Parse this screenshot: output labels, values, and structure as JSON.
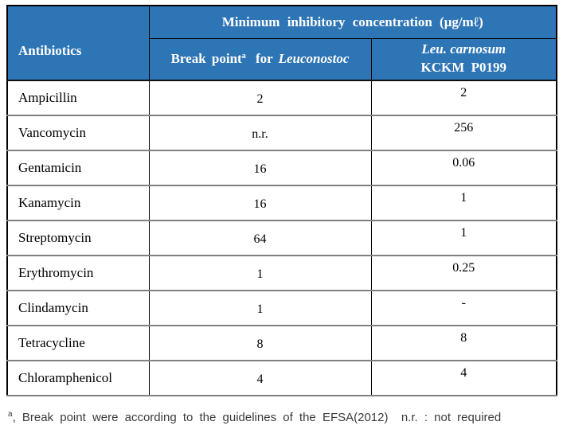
{
  "colors": {
    "header_bg": "#2e75b5",
    "header_text": "#ffffff",
    "body_text": "#000000",
    "row_divider": "#808080",
    "outer_border": "#000000",
    "footnote_text": "#3a3a3a"
  },
  "table": {
    "antibiotics_header": "Antibiotics",
    "mic_header": "Minimum inhibitory concentration (μg/mℓ)",
    "subheaders": {
      "break_point_label": "Break point",
      "break_point_sup": "a",
      "break_point_mid": "for",
      "break_point_species": "Leuconostoc",
      "carnosum_line1": "Leu. carnosum",
      "carnosum_line2": "KCKM P0199"
    },
    "rows": [
      {
        "name": "Ampicillin",
        "break_point": "2",
        "carnosum": "2"
      },
      {
        "name": "Vancomycin",
        "break_point": "n.r.",
        "carnosum": "256"
      },
      {
        "name": "Gentamicin",
        "break_point": "16",
        "carnosum": "0.06"
      },
      {
        "name": "Kanamycin",
        "break_point": "16",
        "carnosum": "1"
      },
      {
        "name": "Streptomycin",
        "break_point": "64",
        "carnosum": "1"
      },
      {
        "name": "Erythromycin",
        "break_point": "1",
        "carnosum": "0.25"
      },
      {
        "name": "Clindamycin",
        "break_point": "1",
        "carnosum": "-"
      },
      {
        "name": "Tetracycline",
        "break_point": "8",
        "carnosum": "8"
      },
      {
        "name": "Chloramphenicol",
        "break_point": "4",
        "carnosum": "4"
      }
    ]
  },
  "footnote": {
    "sup": "a",
    "text": ", Break point were according to the guidelines of the EFSA(2012)  n.r. : not required"
  }
}
